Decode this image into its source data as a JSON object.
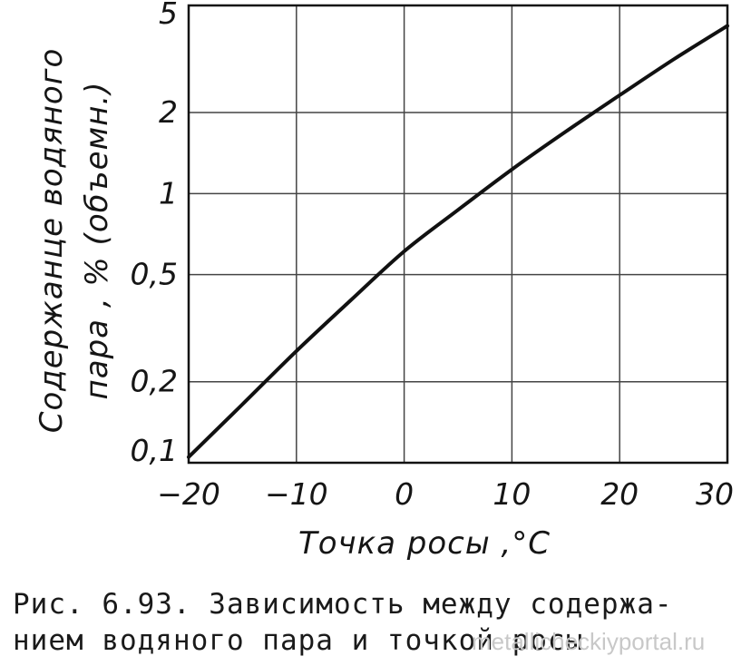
{
  "chart_data": {
    "type": "line",
    "x": [
      -20,
      -15,
      -10,
      -5,
      0,
      5,
      10,
      15,
      20,
      25,
      30
    ],
    "series": [
      {
        "values": [
          0.105,
          0.165,
          0.26,
          0.4,
          0.61,
          0.87,
          1.23,
          1.7,
          2.32,
          3.15,
          4.2
        ]
      }
    ],
    "xlabel": "Точка росы ,°C",
    "ylabel_line1": "Содержанце водяного",
    "ylabel_line2": "пара , % (объемн.)",
    "x_ticks": [
      -20,
      -10,
      0,
      10,
      20,
      30
    ],
    "x_tick_labels": [
      "−20",
      "−10",
      "0",
      "10",
      "20",
      "30"
    ],
    "y_ticks": [
      0.1,
      0.2,
      0.5,
      1,
      2,
      5
    ],
    "y_tick_labels": [
      "0,1",
      "0,2",
      "0,5",
      "1",
      "2",
      "5"
    ],
    "xlim": [
      -20,
      30
    ],
    "ylim": [
      0.1,
      5
    ],
    "y_scale": "log",
    "grid": true,
    "line_color": "#111111"
  },
  "caption": {
    "line1": "Рис. 6.93. Зависимость между содержа-",
    "line2": "нием водяного пара и точкой росы"
  },
  "watermark": "metallicheckiyportal.ru"
}
